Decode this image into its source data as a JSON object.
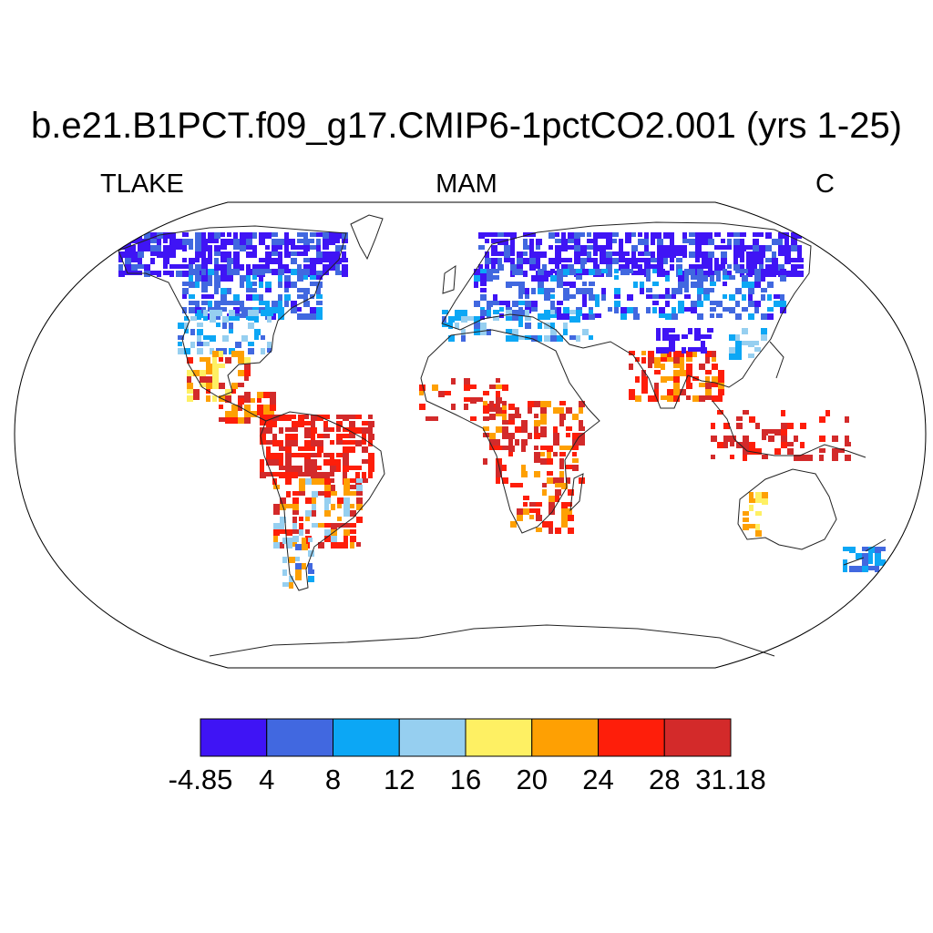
{
  "title": "b.e21.B1PCT.f09_g17.CMIP6-1pctCO2.001 (yrs 1-25)",
  "left_label": "TLAKE",
  "center_label": "MAM",
  "right_label": "C",
  "colorbar": {
    "colors": [
      "#3f14f5",
      "#4168e0",
      "#0ca7f5",
      "#96cff0",
      "#fef063",
      "#fea003",
      "#fe1e0a",
      "#d32a2a"
    ],
    "labels": [
      "-4.85",
      "4",
      "8",
      "12",
      "16",
      "20",
      "24",
      "28",
      "31.18"
    ]
  }
}
